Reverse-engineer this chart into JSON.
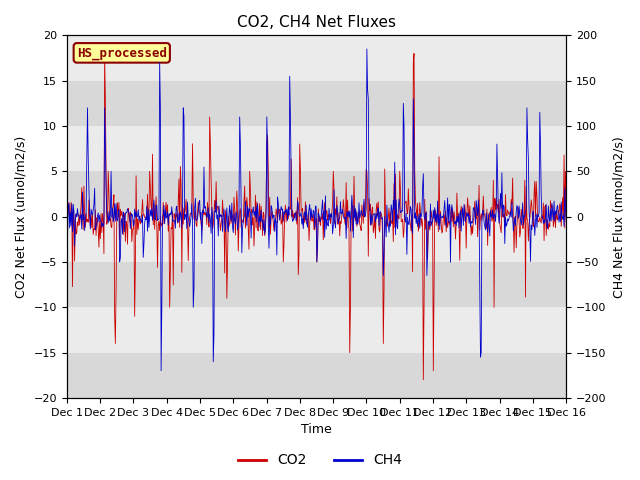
{
  "title": "CO2, CH4 Net Fluxes",
  "xlabel": "Time",
  "ylabel_left": "CO2 Net Flux (umol/m2/s)",
  "ylabel_right": "CH4 Net Flux (nmol/m2/s)",
  "ylim_left": [
    -20,
    20
  ],
  "ylim_right": [
    -200,
    200
  ],
  "yticks_left": [
    -20,
    -15,
    -10,
    -5,
    0,
    5,
    10,
    15,
    20
  ],
  "yticks_right": [
    -200,
    -150,
    -100,
    -50,
    0,
    50,
    100,
    150,
    200
  ],
  "xlim": [
    0,
    15
  ],
  "xtick_positions": [
    0,
    1,
    2,
    3,
    4,
    5,
    6,
    7,
    8,
    9,
    10,
    11,
    12,
    13,
    14,
    15
  ],
  "xtick_labels": [
    "Dec 1",
    "Dec 2",
    "Dec 3",
    "Dec 4",
    "Dec 5",
    "Dec 6",
    "Dec 7",
    "Dec 8",
    "Dec 9",
    "Dec 10",
    "Dec 11",
    "Dec 12",
    "Dec 13",
    "Dec 14",
    "Dec 15",
    "Dec 16"
  ],
  "co2_color": "#cc0000",
  "ch4_color": "#0000cc",
  "bg_color_light": "#ebebeb",
  "bg_color_dark": "#d8d8d8",
  "fig_bg": "#ffffff",
  "legend_box_label": "HS_processed",
  "legend_box_facecolor": "#ffff99",
  "legend_box_edgecolor": "#8b0000",
  "title_fontsize": 11,
  "axis_label_fontsize": 9,
  "tick_fontsize": 8,
  "legend_fontsize": 10,
  "linewidth": 0.6
}
